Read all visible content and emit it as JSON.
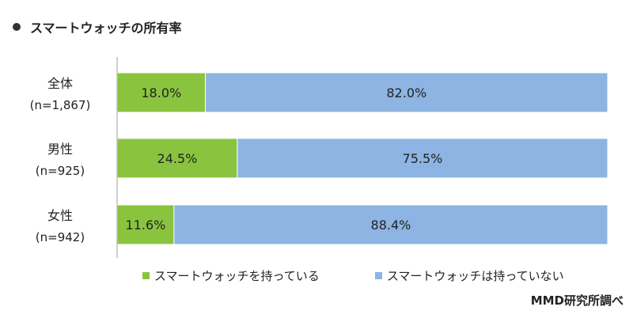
{
  "title": "スマートウォッチの所有率",
  "source": "MMD研究所調べ",
  "colors": {
    "own": "#8ac43f",
    "not_own": "#8db4e2",
    "axis": "#bfbfbf",
    "label_text": "#222222"
  },
  "chart_data": {
    "type": "bar",
    "orientation": "horizontal",
    "stacked": true,
    "percent_scale": [
      0,
      100
    ],
    "categories": [
      {
        "label": "全体",
        "n": "(n=1,867)"
      },
      {
        "label": "男性",
        "n": "(n=925)"
      },
      {
        "label": "女性",
        "n": "(n=942)"
      }
    ],
    "series": [
      {
        "name": "スマートウォッチを持っている",
        "values": [
          18.0,
          24.5,
          11.6
        ],
        "labels": [
          "18.0%",
          "24.5%",
          "11.6%"
        ]
      },
      {
        "name": "スマートウォッチは持っていない",
        "values": [
          82.0,
          75.5,
          88.4
        ],
        "labels": [
          "82.0%",
          "75.5%",
          "88.4%"
        ]
      }
    ],
    "legend_position": "bottom",
    "grid": false
  }
}
